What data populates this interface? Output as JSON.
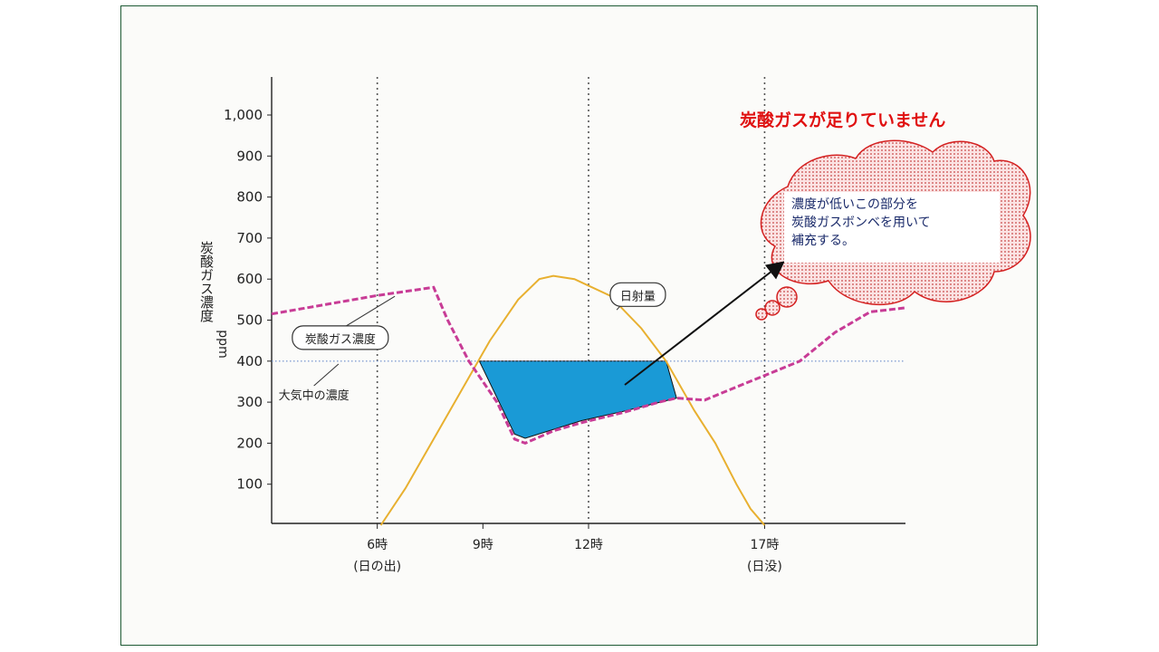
{
  "headline": "炭酸ガスが足りていません",
  "note": {
    "lines": [
      "濃度が低いこの部分を",
      "炭酸ガスボンベを用いて",
      "補充する。"
    ]
  },
  "colors": {
    "co2_line": "#c83c96",
    "solar_line": "#e8b030",
    "deficit_fill": "#1a9ad6",
    "headline": "#e01010",
    "cloud_stroke": "#d42020",
    "cloud_fill": "#f6c6c6",
    "atmosphere_line": "#6a8ccc",
    "guide_line": "#555555"
  },
  "chart_data": {
    "type": "line",
    "ylabel": "炭酸ガス濃度",
    "yunit": "ppm",
    "ylim": [
      0,
      1000
    ],
    "yticks": [
      "100",
      "200",
      "300",
      "400",
      "500",
      "600",
      "700",
      "800",
      "900",
      "1,000"
    ],
    "ytick_values": [
      100,
      200,
      300,
      400,
      500,
      600,
      700,
      800,
      900,
      1000
    ],
    "xlim": [
      3,
      21
    ],
    "xticks": [
      {
        "x": 6,
        "label": "6時",
        "sub": "(日の出)"
      },
      {
        "x": 9,
        "label": "9時",
        "sub": ""
      },
      {
        "x": 12,
        "label": "12時",
        "sub": ""
      },
      {
        "x": 17,
        "label": "17時",
        "sub": "(日没)"
      }
    ],
    "vlines": [
      6,
      12,
      17
    ],
    "grid": false,
    "series": [
      {
        "name": "炭酸ガス濃度",
        "style": "dashed",
        "points": [
          [
            3,
            515
          ],
          [
            6,
            560
          ],
          [
            7.6,
            580
          ],
          [
            8.0,
            500
          ],
          [
            8.6,
            400
          ],
          [
            9.4,
            300
          ],
          [
            9.9,
            210
          ],
          [
            10.2,
            200
          ],
          [
            11.0,
            230
          ],
          [
            11.8,
            250
          ],
          [
            13.0,
            275
          ],
          [
            14.0,
            300
          ],
          [
            14.5,
            310
          ],
          [
            15.3,
            305
          ],
          [
            16.0,
            330
          ],
          [
            17.0,
            365
          ],
          [
            18.0,
            400
          ],
          [
            19.0,
            470
          ],
          [
            20.0,
            520
          ],
          [
            21.0,
            530
          ]
        ]
      },
      {
        "name": "日射量",
        "style": "solid",
        "points": [
          [
            6.1,
            0
          ],
          [
            6.8,
            90
          ],
          [
            7.6,
            210
          ],
          [
            8.4,
            330
          ],
          [
            9.2,
            450
          ],
          [
            10.0,
            550
          ],
          [
            10.6,
            600
          ],
          [
            11.0,
            608
          ],
          [
            11.6,
            600
          ],
          [
            12.6,
            560
          ],
          [
            13.5,
            480
          ],
          [
            14.2,
            400
          ],
          [
            15.0,
            280
          ],
          [
            15.6,
            200
          ],
          [
            16.2,
            100
          ],
          [
            16.6,
            40
          ],
          [
            17.0,
            0
          ]
        ]
      },
      {
        "name": "大気中の濃度",
        "style": "dotted",
        "points": [
          [
            3,
            400
          ],
          [
            21,
            400
          ]
        ]
      }
    ],
    "deficit_area": [
      [
        8.9,
        400
      ],
      [
        14.2,
        400
      ],
      [
        14.5,
        310
      ],
      [
        13.0,
        278
      ],
      [
        11.8,
        255
      ],
      [
        10.2,
        212
      ],
      [
        9.9,
        222
      ]
    ],
    "annotations": [
      {
        "text": "炭酸ガス濃度",
        "x": 4.95,
        "y": 455,
        "target": [
          6.5,
          558
        ]
      },
      {
        "text": "日射量",
        "x": 13.4,
        "y": 560,
        "target": [
          12.8,
          525
        ]
      },
      {
        "text": "大気中の濃度",
        "x": 4.2,
        "y": 318,
        "target": [
          4.9,
          393
        ]
      }
    ]
  }
}
